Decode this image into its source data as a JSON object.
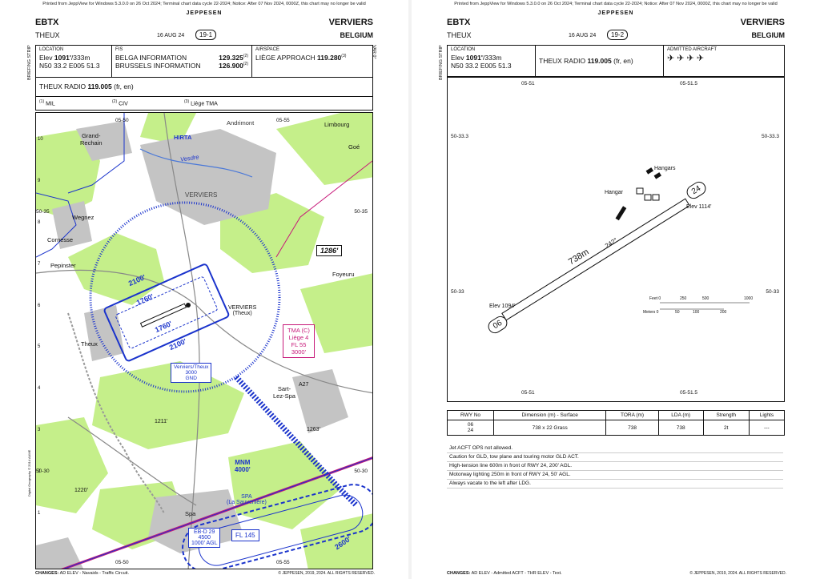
{
  "printed_notice": "Printed from JeppView for Windows 5.3.0.0 on 26 Oct 2024; Terminal chart data cycle 22-2024; Notice: After 07 Nov 2024, 0000Z, this chart may no longer be valid",
  "brand": "JEPPESEN",
  "airport_code": "EBTX",
  "airport_name": "THEUX",
  "city": "VERVIERS",
  "country": "BELGIUM",
  "date": "16 AUG 24",
  "briefing_strip": "BRIEFING STRIP",
  "page1": {
    "chart_number": "19-1",
    "location": {
      "label": "LOCATION",
      "elev_prefix": "Elev",
      "elev_value": "1091'",
      "elev_suffix": "/333m",
      "coords": "N50 33.2 E005 51.3"
    },
    "fis": {
      "label": "FIS",
      "line1_name": "BELGA INFORMATION",
      "line1_freq": "129.325",
      "line1_note": "(2)",
      "line2_name": "BRUSSELS INFORMATION",
      "line2_freq": "126.900",
      "line2_note": "(2)"
    },
    "airspace": {
      "label": "AIRSPACE",
      "name": "LIÈGE APPROACH",
      "freq": "119.280",
      "note": "(3)"
    },
    "radio": {
      "name": "THEUX RADIO",
      "freq": "119.005",
      "lang": "(fr, en)"
    },
    "footnotes": [
      {
        "num": "(1)",
        "text": "MIL"
      },
      {
        "num": "(2)",
        "text": "CIV"
      },
      {
        "num": "(3)",
        "text": "Liège TMA"
      }
    ],
    "var": "VAR 0°",
    "lat_labels": [
      "50-35",
      "50-30"
    ],
    "lon_labels_top": [
      "05-50",
      "05-55"
    ],
    "lon_labels_bottom": [
      "05-50",
      "05-55"
    ],
    "grid_numbers": [
      "10",
      "9",
      "8",
      "7",
      "6",
      "5",
      "4",
      "3",
      "2",
      "1"
    ],
    "places": {
      "andrimont": "Andrimont",
      "limbourg": "Limbourg",
      "goe": "Goé",
      "grand_rechain": "Grand-\nRechain",
      "verviers_city": "VERVIERS",
      "wegnez": "Wegnez",
      "cornesse": "Cornesse",
      "pepinster": "Pepinster",
      "foyeuru": "Foyeuru",
      "theux": "Theux",
      "sart_lez_spa": "Sart-\nLez-Spa",
      "spa": "Spa",
      "hirta": "HIRTA",
      "vesdre": "Vesdre",
      "a27": "A27",
      "a27b": "A27"
    },
    "airport_label": "VERVIERS\n(Theux)",
    "elev_spots": [
      "1286'",
      "1211'",
      "1263'",
      "1220'"
    ],
    "circuit_alts": [
      "2100'",
      "1760'",
      "1760'",
      "2100'"
    ],
    "box_verviers": [
      "Verviers/Theux",
      "3000",
      "GND"
    ],
    "tma_box": [
      "TMA (C)",
      "Liège 4",
      "FL 55",
      "3000'"
    ],
    "mnm": {
      "label": "MNM",
      "alt": "4000'"
    },
    "spa_airport": "SPA\n(La Sauvenière)",
    "eb_d": [
      "EB-D 29",
      "4500",
      "1000' AGL"
    ],
    "fl145": "FL 145",
    "alt_2600": "2600'",
    "copyright_vertical": "Digital Geography © 2014 AAME",
    "changes": "CHANGES:",
    "changes_text": "AD ELEV - Navaids - Traffic Circuit.",
    "copyright": "© JEPPESEN, 2019, 2024. ALL RIGHTS RESERVED."
  },
  "page2": {
    "chart_number": "19-2",
    "location": {
      "label": "LOCATION",
      "elev_prefix": "Elev",
      "elev_value": "1091'",
      "elev_suffix": "/333m",
      "coords": "N50 33.2 E005 51.3"
    },
    "radio": {
      "name": "THEUX RADIO",
      "freq": "119.005",
      "lang": "(fr, en)"
    },
    "admitted_label": "ADMITTED AIRCRAFT",
    "lat_labels": [
      "50-33.3",
      "50-33"
    ],
    "lon_labels": [
      "05-51",
      "05-51.5"
    ],
    "runway": {
      "end1": "06",
      "end2": "24",
      "length": "738m",
      "heading": "242°",
      "elev_06": "Elev 1094'",
      "elev_24": "Elev 1114'"
    },
    "hangars": "Hangars",
    "hangar": "Hangar",
    "scale": {
      "feet_label": "Feet 0",
      "feet_ticks": [
        "250",
        "500",
        "1000"
      ],
      "meters_label": "Meters 0",
      "meter_ticks": [
        "50",
        "100",
        "200"
      ]
    },
    "table": {
      "headers": [
        "RWY No",
        "Dimension (m) - Surface",
        "TORA (m)",
        "LDA (m)",
        "Strength",
        "Lights"
      ],
      "rows": [
        {
          "rwy": "06\n24",
          "dim": "738 x 22 Grass",
          "tora": "738",
          "lda": "738",
          "strength": "2t",
          "lights": "---"
        }
      ]
    },
    "notes": [
      "Jet ACFT OPS not allowed.",
      "Caution for GLD, tow plane and touring motor GLD ACT.",
      "High-tension line 600m in front of RWY 24, 200' AGL.",
      "Motorway lighting 250m in front of RWY 24, 50' AGL.",
      "Always vacate to the left after LDG."
    ],
    "changes": "CHANGES:",
    "changes_text": "AD ELEV - Admitted ACFT - THR ELEV - Text.",
    "copyright": "© JEPPESEN, 2019, 2024. ALL RIGHTS RESERVED."
  }
}
